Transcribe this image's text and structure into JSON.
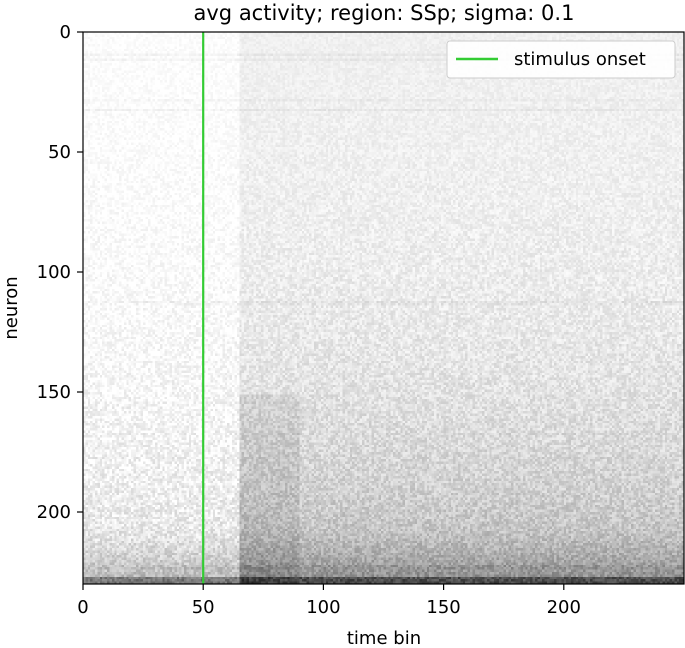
{
  "chart_data": {
    "type": "heatmap",
    "title": "avg activity; region: SSp; sigma: 0.1",
    "xlabel": "time bin",
    "ylabel": "neuron",
    "xlim": [
      0,
      250
    ],
    "ylim": [
      230,
      0
    ],
    "x_ticks": [
      0,
      50,
      100,
      150,
      200
    ],
    "y_ticks": [
      0,
      50,
      100,
      150,
      200
    ],
    "rows": 230,
    "cols": 250,
    "colormap": "gray_r",
    "stimulus_onset_bin": 50,
    "stimulus_line_color": "#33cc33",
    "legend": {
      "position": "upper right",
      "entries": [
        "stimulus onset"
      ]
    },
    "grid": false
  }
}
